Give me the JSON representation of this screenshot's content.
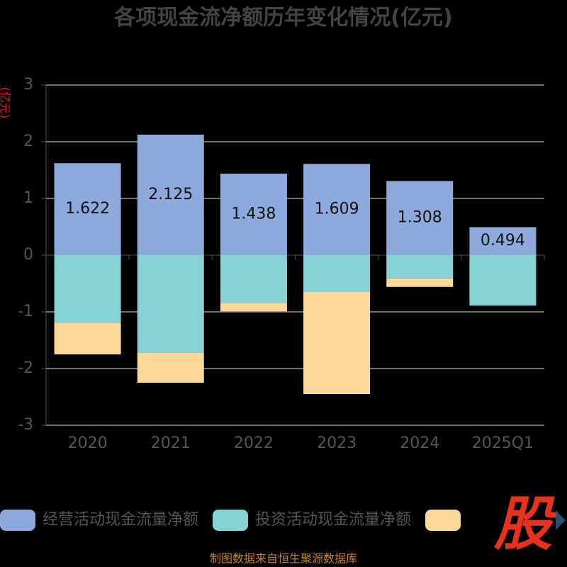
{
  "chart_data": {
    "type": "stacked_bar",
    "title": "各项现金流净额历年变化情况(亿元)",
    "y_label": "(亿元)",
    "source": "制图数据来自恒生聚源数据库",
    "categories": [
      "2020",
      "2021",
      "2022",
      "2023",
      "2024",
      "2025Q1"
    ],
    "series": [
      {
        "name": "经营活动现金流量净额",
        "color": "#8eaadc",
        "values": [
          1.622,
          2.125,
          1.438,
          1.609,
          1.308,
          0.494
        ]
      },
      {
        "name": "投资活动现金流量净额",
        "color": "#86d3d5",
        "values": [
          -1.19,
          -1.72,
          -0.84,
          -0.65,
          -0.41,
          -0.89
        ]
      },
      {
        "color": "#fdd89b",
        "values": [
          -0.56,
          -0.53,
          -0.15,
          -1.8,
          -0.15,
          null
        ]
      }
    ],
    "labeled_series": 0,
    "ylim": [
      -3,
      3
    ],
    "yticks": [
      -3,
      -2,
      -1,
      0,
      1,
      2,
      3
    ],
    "grid": true
  },
  "watermark": "股"
}
